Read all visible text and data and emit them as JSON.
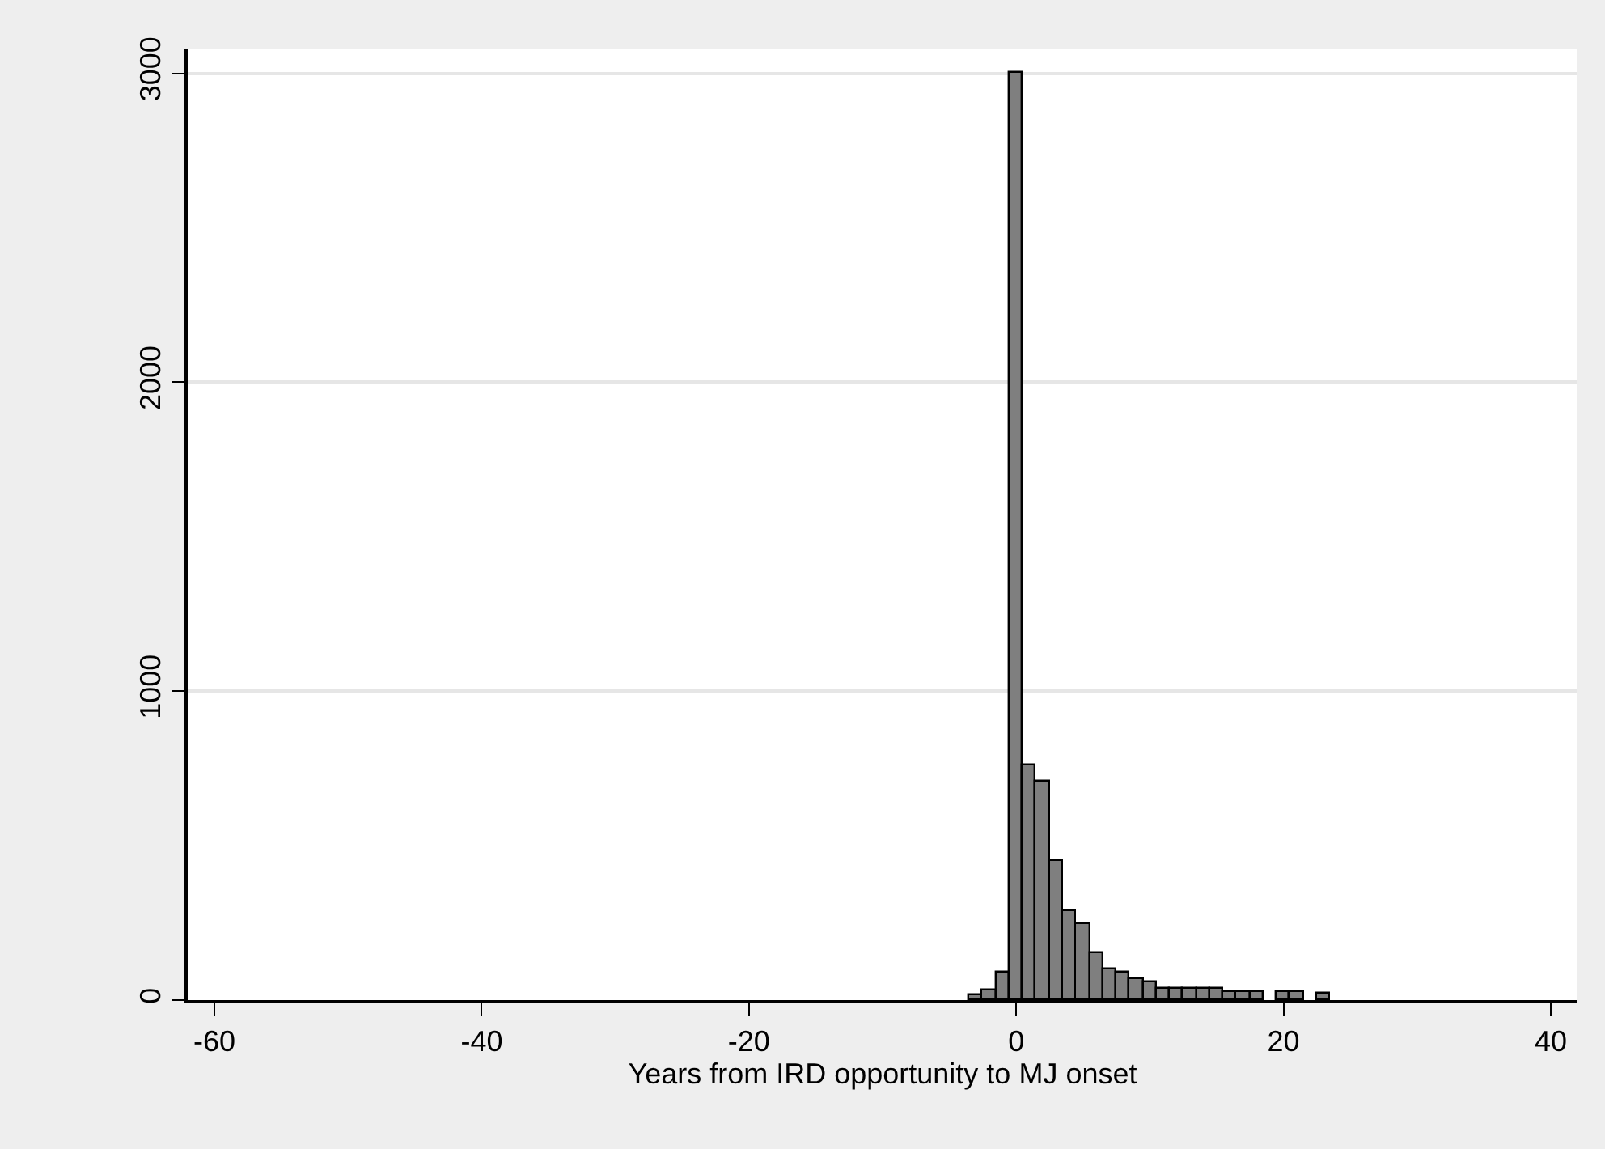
{
  "chart_data": {
    "type": "histogram",
    "xlabel": "Years from IRD opportunity to MJ onset",
    "bins": [
      -3.5,
      -2.5,
      -1.5,
      -0.5,
      0.5,
      1.5,
      2.5,
      3.5,
      4.5,
      5.5,
      6.5,
      7.5,
      8.5,
      9.5,
      10.5,
      11.5,
      12.5,
      13.5,
      14.5,
      15.5,
      16.5,
      17.5,
      18.5,
      19.5,
      20.5,
      21.5,
      22.5,
      23.5
    ],
    "values": [
      15,
      32,
      91,
      3000,
      759,
      706,
      451,
      288,
      245,
      152,
      100,
      89,
      67,
      56,
      35,
      35,
      35,
      35,
      35,
      25,
      25,
      25,
      0,
      25,
      25,
      0,
      20
    ],
    "color": "#7f7f7f",
    "xlim": [
      -62,
      42
    ],
    "xticks": [
      -60,
      -40,
      -20,
      0,
      20,
      40
    ],
    "ylim": [
      0,
      3080
    ],
    "yticks": [
      0,
      1000,
      2000,
      3000
    ],
    "grid": "y"
  }
}
